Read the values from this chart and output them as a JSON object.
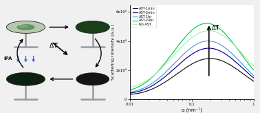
{
  "xlabel": "q (nm⁻¹)",
  "ylabel": "Scattering Intensity (a.u.)",
  "xlim": [
    0.01,
    1.0
  ],
  "ylim": [
    0,
    65000.0
  ],
  "ytick_vals": [
    0,
    20000,
    40000,
    60000
  ],
  "ytick_labels": [
    "0",
    "2x10⁴",
    "4x10⁴",
    "6x10⁴"
  ],
  "legend_labels": [
    "AST-1min",
    "AST-2min",
    "AST-1hr",
    "AST-24hr",
    "No AST"
  ],
  "line_colors": [
    "#111111",
    "#00008B",
    "#5599dd",
    "#00cc44",
    "#aaeebb"
  ],
  "peak_heights": [
    28000,
    35000,
    40000,
    52000,
    47000
  ],
  "peak_qs": [
    0.2,
    0.19,
    0.185,
    0.175,
    0.19
  ],
  "sigma": [
    0.55,
    0.55,
    0.55,
    0.55,
    0.6
  ],
  "low_q_amp": [
    1800,
    2000,
    2200,
    2500,
    3500
  ],
  "low_q_exp": [
    1.2,
    1.2,
    1.2,
    1.2,
    1.5
  ],
  "background_color": "#f0f0f0",
  "plot_bg": "#ffffff"
}
